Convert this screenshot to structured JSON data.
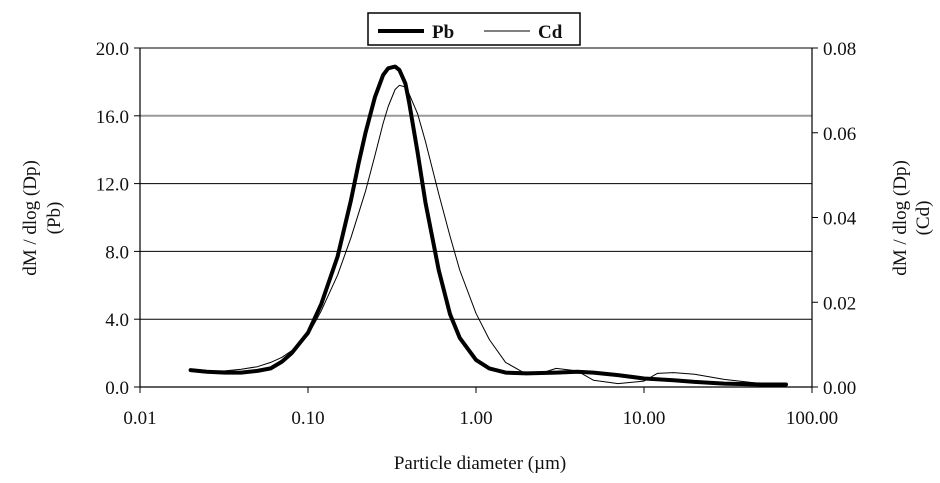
{
  "chart_data": {
    "type": "line",
    "title": "",
    "xlabel": "Particle diameter  (µm)",
    "ylabel_left_line1": "dM / dlog (Dp)",
    "ylabel_left_line2": "(Pb)",
    "ylabel_right_line1": "dM / dlog (Dp)",
    "ylabel_right_line2": "(Cd)",
    "x_scale": "log",
    "xlim": [
      0.01,
      100
    ],
    "x_tick_labels": [
      "0.01",
      "0.10",
      "1.00",
      "10.00",
      "100.00"
    ],
    "x_tick_values": [
      0.01,
      0.1,
      1,
      10,
      100
    ],
    "ylim_left": [
      0,
      20
    ],
    "y_left_tick_labels": [
      "0.0",
      "4.0",
      "8.0",
      "12.0",
      "16.0",
      "20.0"
    ],
    "y_left_tick_values": [
      0,
      4,
      8,
      12,
      16,
      20
    ],
    "ylim_right": [
      0,
      0.08
    ],
    "y_right_tick_labels": [
      "0.00",
      "0.02",
      "0.04",
      "0.06",
      "0.08"
    ],
    "y_right_tick_values": [
      0,
      0.02,
      0.04,
      0.06,
      0.08
    ],
    "grid": "horizontal",
    "legend_position": "top-center",
    "series": [
      {
        "name": "Pb",
        "axis": "left",
        "color": "#000000",
        "x": [
          0.02,
          0.025,
          0.032,
          0.04,
          0.05,
          0.06,
          0.07,
          0.08,
          0.1,
          0.12,
          0.15,
          0.18,
          0.2,
          0.22,
          0.25,
          0.28,
          0.3,
          0.33,
          0.35,
          0.38,
          0.4,
          0.45,
          0.5,
          0.6,
          0.7,
          0.8,
          1.0,
          1.2,
          1.5,
          2.0,
          3.0,
          4.0,
          5.0,
          7.0,
          10.0,
          15.0,
          20.0,
          30.0,
          50.0,
          70.0
        ],
        "y": [
          1.0,
          0.9,
          0.85,
          0.85,
          0.95,
          1.1,
          1.5,
          2.0,
          3.2,
          4.9,
          7.7,
          11.0,
          13.2,
          15.0,
          17.1,
          18.4,
          18.8,
          18.9,
          18.7,
          17.9,
          16.8,
          13.8,
          10.9,
          6.9,
          4.3,
          2.9,
          1.6,
          1.1,
          0.85,
          0.8,
          0.85,
          0.9,
          0.85,
          0.7,
          0.5,
          0.4,
          0.3,
          0.2,
          0.15,
          0.15
        ]
      },
      {
        "name": "Cd",
        "axis": "right",
        "color": "#000000",
        "x": [
          0.02,
          0.025,
          0.032,
          0.04,
          0.05,
          0.06,
          0.07,
          0.08,
          0.1,
          0.12,
          0.15,
          0.18,
          0.2,
          0.22,
          0.25,
          0.28,
          0.3,
          0.33,
          0.35,
          0.38,
          0.4,
          0.45,
          0.5,
          0.6,
          0.7,
          0.8,
          1.0,
          1.2,
          1.5,
          2.0,
          2.5,
          3.0,
          4.0,
          5.0,
          7.0,
          10.0,
          12.0,
          15.0,
          20.0,
          30.0,
          50.0,
          70.0
        ],
        "y": [
          0.0039,
          0.0038,
          0.0038,
          0.0042,
          0.0048,
          0.0058,
          0.007,
          0.0086,
          0.0122,
          0.018,
          0.0264,
          0.0352,
          0.041,
          0.0462,
          0.0546,
          0.0622,
          0.0662,
          0.0702,
          0.0712,
          0.0708,
          0.0692,
          0.0644,
          0.058,
          0.0456,
          0.0356,
          0.0276,
          0.0174,
          0.0112,
          0.0058,
          0.003,
          0.0034,
          0.0044,
          0.0038,
          0.0016,
          0.0008,
          0.0014,
          0.0032,
          0.0034,
          0.003,
          0.0018,
          0.0008,
          0.0004
        ]
      }
    ]
  }
}
